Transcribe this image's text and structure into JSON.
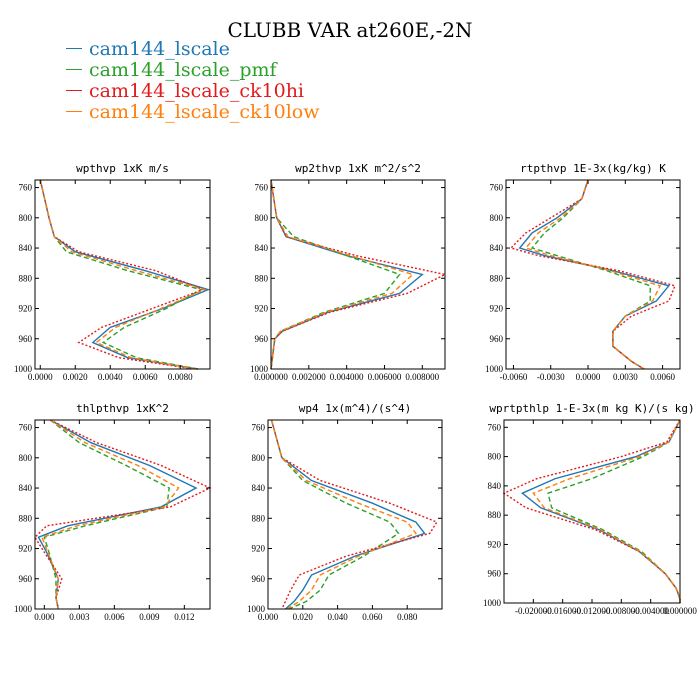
{
  "title": "CLUBB VAR at260E,-2N",
  "colors": {
    "axis": "#000000"
  },
  "legend": [
    {
      "label": "cam144_lscale",
      "color": "#1f77b4",
      "dash": "solid"
    },
    {
      "label": "cam144_lscale_pmf",
      "color": "#2ca02c",
      "dash": "dashed"
    },
    {
      "label": "cam144_lscale_ck10hi",
      "color": "#e41a1c",
      "dash": "dotted"
    },
    {
      "label": "cam144_lscale_ck10low",
      "color": "#ff7f0e",
      "dash": "dashed"
    }
  ],
  "chart_data": [
    {
      "type": "line",
      "title": "wpthvp   1xK m/s",
      "xlim": [
        -0.0003,
        0.0097
      ],
      "ylim": [
        1000,
        750
      ],
      "y_ticks": [
        "760",
        "800",
        "840",
        "880",
        "920",
        "960",
        "1000"
      ],
      "x_ticks": [
        "0.0000",
        "0.0020",
        "0.0040",
        "0.0060",
        "0.0080"
      ],
      "x_tick_values": [
        0,
        0.002,
        0.004,
        0.006,
        0.008
      ],
      "y": [
        750,
        800,
        825,
        845,
        870,
        895,
        920,
        945,
        965,
        985,
        1000
      ],
      "series": [
        {
          "values": [
            0.0,
            0.0005,
            0.0008,
            0.002,
            0.006,
            0.0096,
            0.007,
            0.004,
            0.003,
            0.005,
            0.009
          ]
        },
        {
          "values": [
            0.0,
            0.0005,
            0.0008,
            0.0015,
            0.005,
            0.0092,
            0.0072,
            0.0048,
            0.0036,
            0.0055,
            0.009
          ]
        },
        {
          "values": [
            0.0,
            0.0005,
            0.0008,
            0.0022,
            0.0066,
            0.0093,
            0.0064,
            0.0035,
            0.0022,
            0.0045,
            0.0088
          ]
        },
        {
          "values": [
            0.0,
            0.0005,
            0.0008,
            0.0018,
            0.0055,
            0.0094,
            0.0069,
            0.0043,
            0.0032,
            0.0052,
            0.0089
          ]
        }
      ]
    },
    {
      "type": "line",
      "title": "wp2thvp   1xK m^2/s^2",
      "xlim": [
        0,
        0.0092
      ],
      "ylim": [
        1000,
        750
      ],
      "y_ticks": [
        "760",
        "800",
        "840",
        "880",
        "920",
        "960",
        "1000"
      ],
      "x_ticks": [
        "0.000000",
        "0.002000",
        "0.004000",
        "0.006000",
        "0.008000"
      ],
      "x_tick_values": [
        0,
        0.002,
        0.004,
        0.006,
        0.008
      ],
      "y": [
        750,
        800,
        825,
        850,
        875,
        900,
        925,
        950,
        960,
        980,
        1000
      ],
      "series": [
        {
          "values": [
            0.0,
            0.0003,
            0.0008,
            0.004,
            0.008,
            0.0068,
            0.003,
            0.0006,
            0.0002,
            0.0001,
            0.0
          ]
        },
        {
          "values": [
            0.0,
            0.0003,
            0.0012,
            0.004,
            0.0068,
            0.006,
            0.0028,
            0.0005,
            0.0002,
            0.0001,
            0.0
          ]
        },
        {
          "values": [
            0.0,
            0.0003,
            0.0008,
            0.0045,
            0.0092,
            0.0072,
            0.0031,
            0.0006,
            0.0002,
            0.0001,
            0.0
          ]
        },
        {
          "values": [
            0.0,
            0.0003,
            0.0009,
            0.0042,
            0.0075,
            0.0064,
            0.0029,
            0.0005,
            0.0002,
            0.0001,
            0.0
          ]
        }
      ]
    },
    {
      "type": "line",
      "title": "rtpthvp   1E-3x(kg/kg) K",
      "xlim": [
        -0.0066,
        0.0074
      ],
      "ylim": [
        1000,
        750
      ],
      "y_ticks": [
        "760",
        "800",
        "840",
        "880",
        "920",
        "960",
        "1000"
      ],
      "x_ticks": [
        "-0.0060",
        "-0.0030",
        "0.0000",
        "0.0030",
        "0.0060"
      ],
      "x_tick_values": [
        -0.006,
        -0.003,
        0,
        0.003,
        0.006
      ],
      "y": [
        750,
        775,
        800,
        820,
        840,
        850,
        870,
        890,
        910,
        930,
        950,
        970,
        990,
        1000
      ],
      "series": [
        {
          "values": [
            0.0,
            -0.0005,
            -0.0025,
            -0.0045,
            -0.0055,
            -0.0035,
            0.002,
            0.0065,
            0.0055,
            0.003,
            0.002,
            0.002,
            0.0035,
            0.0045
          ]
        },
        {
          "values": [
            0.0,
            -0.0005,
            -0.002,
            -0.0035,
            -0.0045,
            -0.0025,
            0.0015,
            0.005,
            0.005,
            0.003,
            0.002,
            0.002,
            0.0035,
            0.0045
          ]
        },
        {
          "values": [
            0.0,
            -0.0005,
            -0.003,
            -0.005,
            -0.0062,
            -0.004,
            0.0025,
            0.007,
            0.0065,
            0.0035,
            0.002,
            0.002,
            0.0035,
            0.0045
          ]
        },
        {
          "values": [
            0.0,
            -0.0005,
            -0.0022,
            -0.004,
            -0.005,
            -0.003,
            0.0018,
            0.0058,
            0.0052,
            0.003,
            0.002,
            0.002,
            0.0035,
            0.0045
          ]
        }
      ]
    },
    {
      "type": "line",
      "title": "thlpthvp   1xK^2",
      "xlim": [
        -0.0008,
        0.0142
      ],
      "ylim": [
        1000,
        750
      ],
      "y_ticks": [
        "760",
        "800",
        "840",
        "880",
        "920",
        "960",
        "1000"
      ],
      "x_ticks": [
        "0.000",
        "0.003",
        "0.006",
        "0.009",
        "0.012"
      ],
      "x_tick_values": [
        0,
        0.003,
        0.006,
        0.009,
        0.012
      ],
      "y": [
        750,
        780,
        810,
        840,
        865,
        890,
        905,
        925,
        960,
        985,
        1000
      ],
      "series": [
        {
          "values": [
            0.0005,
            0.004,
            0.009,
            0.013,
            0.01,
            0.002,
            -0.0005,
            0.0002,
            0.0012,
            0.001,
            0.0012
          ]
        },
        {
          "values": [
            0.0005,
            0.003,
            0.007,
            0.0107,
            0.0105,
            0.0035,
            0.0,
            0.0004,
            0.001,
            0.001,
            0.0012
          ]
        },
        {
          "values": [
            0.0005,
            0.0045,
            0.01,
            0.0142,
            0.0108,
            0.0002,
            -0.0008,
            0.0,
            0.0015,
            0.001,
            0.0012
          ]
        },
        {
          "values": [
            0.0005,
            0.0035,
            0.008,
            0.0115,
            0.0103,
            0.0028,
            -0.0002,
            0.0003,
            0.0012,
            0.001,
            0.0012
          ]
        }
      ]
    },
    {
      "type": "line",
      "title": "wp4   1x(m^4)/(s^4)",
      "xlim": [
        0,
        0.1
      ],
      "ylim": [
        1000,
        750
      ],
      "y_ticks": [
        "760",
        "800",
        "840",
        "880",
        "920",
        "960",
        "1000"
      ],
      "x_ticks": [
        "0.000",
        "0.020",
        "0.040",
        "0.060",
        "0.080"
      ],
      "x_tick_values": [
        0,
        0.02,
        0.04,
        0.06,
        0.08
      ],
      "y": [
        750,
        800,
        830,
        860,
        885,
        900,
        930,
        955,
        975,
        990,
        1000
      ],
      "series": [
        {
          "values": [
            0.002,
            0.008,
            0.025,
            0.06,
            0.085,
            0.09,
            0.05,
            0.025,
            0.02,
            0.015,
            0.01
          ]
        },
        {
          "values": [
            0.002,
            0.008,
            0.02,
            0.045,
            0.07,
            0.075,
            0.055,
            0.035,
            0.03,
            0.022,
            0.012
          ]
        },
        {
          "values": [
            0.002,
            0.008,
            0.03,
            0.07,
            0.097,
            0.093,
            0.045,
            0.018,
            0.013,
            0.01,
            0.008
          ]
        },
        {
          "values": [
            0.002,
            0.008,
            0.022,
            0.052,
            0.08,
            0.085,
            0.052,
            0.03,
            0.025,
            0.018,
            0.011
          ]
        }
      ]
    },
    {
      "type": "line",
      "title": "wprtpthlp   1-E-3x(m kg K)/(s kg)",
      "xlim": [
        -0.024,
        0
      ],
      "ylim": [
        1000,
        750
      ],
      "y_ticks": [
        "760",
        "800",
        "840",
        "880",
        "920",
        "960",
        "1000"
      ],
      "x_ticks": [
        "-0.020000",
        "-0.016000",
        "-0.012000",
        "-0.008000",
        "-0.004000",
        "0.000000"
      ],
      "x_tick_values": [
        -0.02,
        -0.016,
        -0.012,
        -0.008,
        -0.004,
        0
      ],
      "y": [
        750,
        780,
        800,
        830,
        850,
        870,
        900,
        930,
        960,
        980,
        995,
        1000
      ],
      "series": [
        {
          "values": [
            0.0,
            -0.0015,
            -0.006,
            -0.017,
            -0.0215,
            -0.019,
            -0.011,
            -0.0055,
            -0.002,
            -0.0005,
            0.0,
            0.0
          ]
        },
        {
          "values": [
            0.0,
            -0.0015,
            -0.005,
            -0.012,
            -0.018,
            -0.0175,
            -0.0105,
            -0.0052,
            -0.002,
            -0.0005,
            0.0,
            0.0
          ]
        },
        {
          "values": [
            0.0,
            -0.0018,
            -0.008,
            -0.0195,
            -0.024,
            -0.021,
            -0.0115,
            -0.0055,
            -0.002,
            -0.0005,
            0.0,
            0.0
          ]
        },
        {
          "values": [
            0.0,
            -0.0015,
            -0.0055,
            -0.015,
            -0.02,
            -0.0185,
            -0.0108,
            -0.0054,
            -0.002,
            -0.0005,
            0.0,
            0.0
          ]
        }
      ]
    }
  ]
}
